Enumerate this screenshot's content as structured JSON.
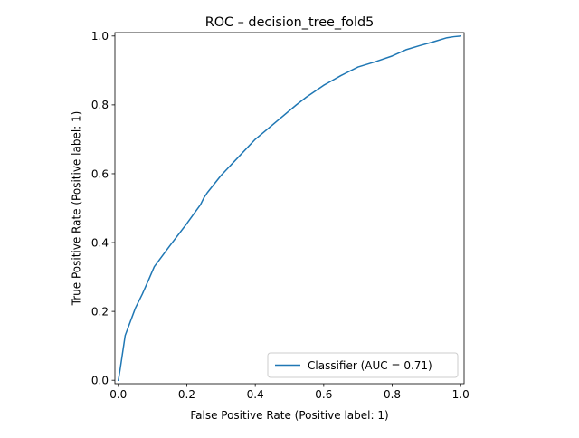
{
  "chart_data": {
    "type": "line",
    "title": "ROC – decision_tree_fold5",
    "xlabel": "False Positive Rate (Positive label: 1)",
    "ylabel": "True Positive Rate (Positive label: 1)",
    "xlim": [
      -0.01,
      1.01
    ],
    "ylim": [
      -0.01,
      1.01
    ],
    "xticks": [
      0.0,
      0.2,
      0.4,
      0.6,
      0.8,
      1.0
    ],
    "xtick_labels": [
      "0.0",
      "0.2",
      "0.4",
      "0.6",
      "0.8",
      "1.0"
    ],
    "yticks": [
      0.0,
      0.2,
      0.4,
      0.6,
      0.8,
      1.0
    ],
    "ytick_labels": [
      "0.0",
      "0.2",
      "0.4",
      "0.6",
      "0.8",
      "1.0"
    ],
    "grid": false,
    "legend_location": "lower right",
    "series": [
      {
        "name": "Classifier (AUC = 0.71)",
        "color": "#1f77b4",
        "x": [
          0.0,
          0.005,
          0.02,
          0.035,
          0.05,
          0.07,
          0.09,
          0.105,
          0.15,
          0.2,
          0.24,
          0.25,
          0.26,
          0.3,
          0.4,
          0.52,
          0.55,
          0.6,
          0.62,
          0.65,
          0.7,
          0.75,
          0.8,
          0.84,
          0.88,
          0.92,
          0.96,
          0.98,
          1.0
        ],
        "y": [
          0.0,
          0.03,
          0.13,
          0.17,
          0.21,
          0.25,
          0.295,
          0.33,
          0.39,
          0.455,
          0.51,
          0.53,
          0.545,
          0.595,
          0.7,
          0.8,
          0.823,
          0.857,
          0.868,
          0.885,
          0.91,
          0.925,
          0.942,
          0.96,
          0.972,
          0.983,
          0.995,
          0.998,
          1.0
        ]
      }
    ]
  }
}
